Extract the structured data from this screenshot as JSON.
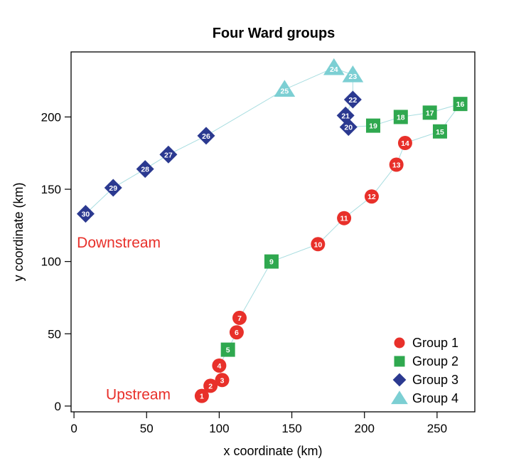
{
  "chart_data": {
    "type": "scatter",
    "title": "Four Ward groups",
    "xlabel": "x coordinate (km)",
    "ylabel": "y coordinate (km)",
    "xlim": [
      -2,
      276
    ],
    "ylim": [
      -4,
      245
    ],
    "xticks": [
      0,
      50,
      100,
      150,
      200,
      250
    ],
    "yticks": [
      0,
      50,
      100,
      150,
      200
    ],
    "grid": false,
    "legend_position": "bottom-right",
    "connect_line_color": "#a8dde0",
    "groups": [
      {
        "name": "Group 1",
        "marker": "circle",
        "color": "#e8302a"
      },
      {
        "name": "Group 2",
        "marker": "square",
        "color": "#2fa84f"
      },
      {
        "name": "Group 3",
        "marker": "diamond",
        "color": "#2b3990"
      },
      {
        "name": "Group 4",
        "marker": "triangle",
        "color": "#7ccfd3"
      }
    ],
    "points": [
      {
        "label": "1",
        "x": 88,
        "y": 7,
        "group": 1
      },
      {
        "label": "2",
        "x": 94,
        "y": 14,
        "group": 1
      },
      {
        "label": "3",
        "x": 102,
        "y": 18,
        "group": 1
      },
      {
        "label": "4",
        "x": 100,
        "y": 28,
        "group": 1
      },
      {
        "label": "5",
        "x": 106,
        "y": 39,
        "group": 2
      },
      {
        "label": "6",
        "x": 112,
        "y": 51,
        "group": 1
      },
      {
        "label": "7",
        "x": 114,
        "y": 61,
        "group": 1
      },
      {
        "label": "9",
        "x": 136,
        "y": 100,
        "group": 2
      },
      {
        "label": "10",
        "x": 168,
        "y": 112,
        "group": 1
      },
      {
        "label": "11",
        "x": 186,
        "y": 130,
        "group": 1
      },
      {
        "label": "12",
        "x": 205,
        "y": 145,
        "group": 1
      },
      {
        "label": "13",
        "x": 222,
        "y": 167,
        "group": 1
      },
      {
        "label": "14",
        "x": 228,
        "y": 182,
        "group": 1
      },
      {
        "label": "15",
        "x": 252,
        "y": 190,
        "group": 2
      },
      {
        "label": "16",
        "x": 266,
        "y": 209,
        "group": 2
      },
      {
        "label": "17",
        "x": 245,
        "y": 203,
        "group": 2
      },
      {
        "label": "18",
        "x": 225,
        "y": 200,
        "group": 2
      },
      {
        "label": "19",
        "x": 206,
        "y": 194,
        "group": 2
      },
      {
        "label": "20",
        "x": 189,
        "y": 193,
        "group": 3
      },
      {
        "label": "21",
        "x": 187,
        "y": 201,
        "group": 3
      },
      {
        "label": "22",
        "x": 192,
        "y": 212,
        "group": 3
      },
      {
        "label": "23",
        "x": 192,
        "y": 229,
        "group": 4
      },
      {
        "label": "24",
        "x": 179,
        "y": 234,
        "group": 4
      },
      {
        "label": "25",
        "x": 145,
        "y": 219,
        "group": 4
      },
      {
        "label": "26",
        "x": 91,
        "y": 187,
        "group": 3
      },
      {
        "label": "27",
        "x": 65,
        "y": 174,
        "group": 3
      },
      {
        "label": "28",
        "x": 49,
        "y": 164,
        "group": 3
      },
      {
        "label": "29",
        "x": 27,
        "y": 151,
        "group": 3
      },
      {
        "label": "30",
        "x": 8,
        "y": 133,
        "group": 3
      }
    ],
    "annotations": [
      {
        "text": "Downstream",
        "x": 2,
        "y": 113,
        "color": "#e8302a"
      },
      {
        "text": "Upstream",
        "x": 22,
        "y": 8,
        "color": "#e8302a"
      }
    ]
  }
}
